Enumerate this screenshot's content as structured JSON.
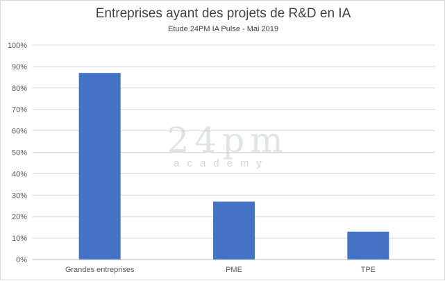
{
  "chart_data": {
    "type": "bar",
    "title": "Entreprises ayant des projets de R&D en IA",
    "subtitle": "Etude 24PM IA Pulse - Mai 2019",
    "categories": [
      "Grandes entreprises",
      "PME",
      "TPE"
    ],
    "values": [
      0.87,
      0.27,
      0.13
    ],
    "ylim": [
      0,
      1
    ],
    "yticks": [
      "0%",
      "10%",
      "20%",
      "30%",
      "40%",
      "50%",
      "60%",
      "70%",
      "80%",
      "90%",
      "100%"
    ],
    "grid": true,
    "bar_color": "#4472C4",
    "legend": "none"
  },
  "watermark": {
    "main_text": "24pm",
    "sub_text": "academy"
  }
}
